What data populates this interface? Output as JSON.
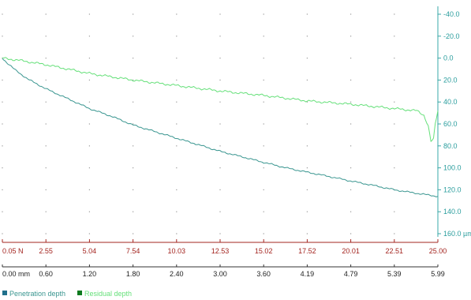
{
  "chart_data": {
    "type": "line",
    "y_axis": {
      "ticks": [
        -40,
        -20,
        0,
        20,
        40,
        60,
        80,
        100,
        120,
        140,
        160
      ],
      "tick_labels": [
        "-40.0",
        "-20.0",
        "0.0",
        "20.0",
        "40.0",
        "60.0",
        "80.0",
        "100.0",
        "120.0",
        "140.0",
        "160.0 µm"
      ],
      "range": [
        -40,
        160
      ],
      "inverted": true
    },
    "x_axis_force": {
      "tick_labels": [
        "0.05 N",
        "2.55",
        "5.04",
        "7.54",
        "10.03",
        "12.53",
        "15.02",
        "17.52",
        "20.01",
        "22.51",
        "25.00"
      ],
      "range": [
        0.05,
        25.0
      ]
    },
    "x_axis_displacement": {
      "tick_labels": [
        "0.00 mm",
        "0.60",
        "1.20",
        "1.80",
        "2.40",
        "3.00",
        "3.60",
        "4.19",
        "4.79",
        "5.39",
        "5.99"
      ],
      "range": [
        0.0,
        5.99
      ]
    },
    "grid": "dotted",
    "legend_placement": "bottom-left",
    "series": [
      {
        "name": "Penetration depth",
        "color": "#3a9690",
        "x": [
          0.05,
          0.3,
          0.8,
          1.5,
          2.55,
          3.8,
          5.04,
          6.3,
          7.54,
          8.8,
          10.03,
          11.3,
          12.53,
          13.8,
          15.02,
          16.3,
          17.52,
          18.8,
          20.01,
          21.3,
          22.51,
          23.7,
          25.0
        ],
        "y": [
          0,
          4,
          11,
          19,
          28,
          37,
          46,
          53,
          61,
          67,
          73,
          79,
          85,
          90,
          95,
          100,
          104,
          108,
          112,
          116,
          120,
          123,
          126
        ]
      },
      {
        "name": "Residual depth",
        "color": "#66e07a",
        "x": [
          0.05,
          1.0,
          2.55,
          5.04,
          7.54,
          10.03,
          12.53,
          15.02,
          17.52,
          20.01,
          22.51,
          23.8,
          24.2,
          24.45,
          24.6,
          24.75,
          24.85,
          25.0
        ],
        "y": [
          0,
          2,
          6,
          14,
          20,
          25,
          30,
          34,
          39,
          42,
          46,
          48,
          52,
          62,
          76,
          74,
          60,
          48
        ]
      }
    ],
    "legend_swatches": [
      "#1f6f8b",
      "#0d7a1e"
    ]
  }
}
